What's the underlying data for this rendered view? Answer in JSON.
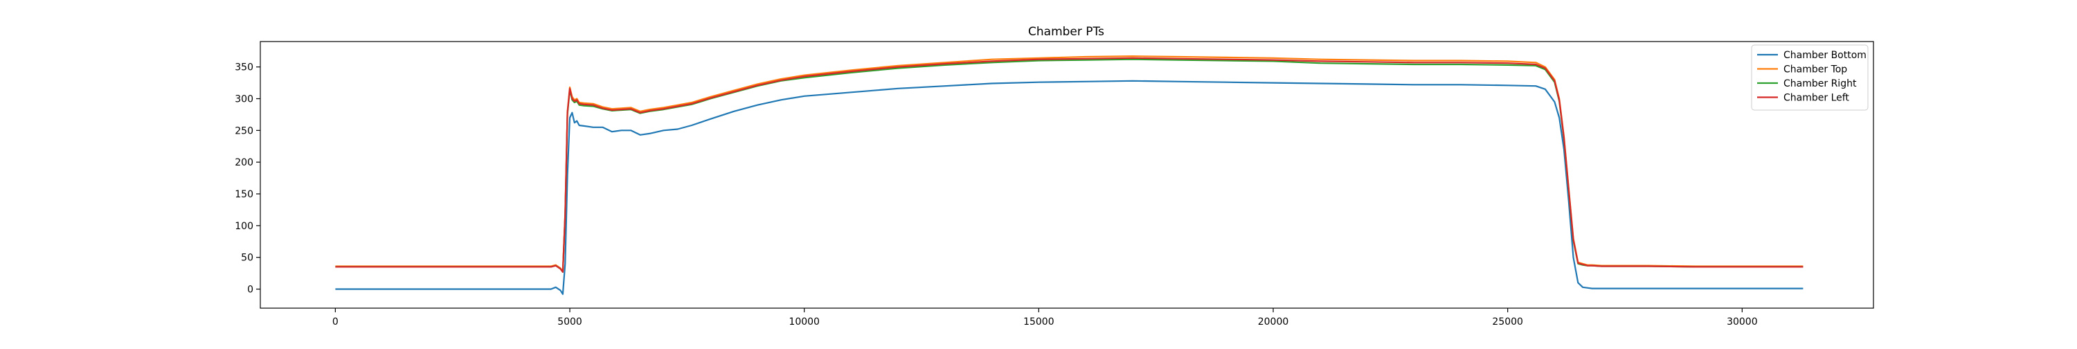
{
  "chart_data": {
    "type": "line",
    "title": "Chamber PTs",
    "xlabel": "",
    "ylabel": "",
    "xlim": [
      -1600,
      32800
    ],
    "ylim": [
      -30,
      390
    ],
    "xticks": [
      0,
      5000,
      10000,
      15000,
      20000,
      25000,
      30000
    ],
    "yticks": [
      0,
      50,
      100,
      150,
      200,
      250,
      300,
      350
    ],
    "grid": false,
    "legend_position": "top-right",
    "series": [
      {
        "name": "Chamber Bottom",
        "color": "#1f77b4",
        "x": [
          0,
          1000,
          2000,
          3000,
          4000,
          4600,
          4700,
          4800,
          4850,
          4900,
          4950,
          5000,
          5050,
          5100,
          5150,
          5200,
          5300,
          5500,
          5700,
          5900,
          6100,
          6300,
          6500,
          6700,
          7000,
          7300,
          7600,
          8000,
          8500,
          9000,
          9500,
          10000,
          11000,
          12000,
          13000,
          14000,
          15000,
          16000,
          17000,
          18000,
          19000,
          20000,
          21000,
          22000,
          23000,
          24000,
          25000,
          25600,
          25800,
          26000,
          26100,
          26200,
          26300,
          26400,
          26500,
          26600,
          26700,
          26800,
          27000,
          28000,
          29000,
          30000,
          31300
        ],
        "y": [
          0,
          0,
          0,
          0,
          0,
          0,
          3,
          -2,
          -8,
          40,
          180,
          270,
          278,
          262,
          265,
          258,
          257,
          255,
          255,
          248,
          250,
          250,
          243,
          245,
          250,
          252,
          258,
          268,
          280,
          290,
          298,
          304,
          310,
          316,
          320,
          324,
          326,
          327,
          328,
          327,
          326,
          325,
          324,
          323,
          322,
          322,
          321,
          320,
          315,
          295,
          270,
          220,
          140,
          50,
          10,
          3,
          2,
          1,
          1,
          1,
          1,
          1,
          1
        ]
      },
      {
        "name": "Chamber Top",
        "color": "#ff7f0e",
        "x": [
          0,
          1000,
          2000,
          3000,
          4000,
          4600,
          4700,
          4800,
          4850,
          4900,
          4950,
          5000,
          5050,
          5100,
          5150,
          5200,
          5300,
          5500,
          5700,
          5900,
          6100,
          6300,
          6500,
          6700,
          7000,
          7300,
          7600,
          8000,
          8500,
          9000,
          9500,
          10000,
          11000,
          12000,
          13000,
          14000,
          15000,
          16000,
          17000,
          18000,
          19000,
          20000,
          21000,
          22000,
          23000,
          24000,
          25000,
          25600,
          25800,
          26000,
          26100,
          26200,
          26300,
          26400,
          26500,
          26600,
          26700,
          26800,
          27000,
          28000,
          29000,
          30000,
          31300
        ],
        "y": [
          36,
          36,
          36,
          36,
          36,
          36,
          38,
          33,
          28,
          120,
          280,
          318,
          303,
          298,
          300,
          294,
          293,
          292,
          287,
          284,
          285,
          286,
          280,
          283,
          286,
          290,
          294,
          303,
          313,
          323,
          331,
          337,
          345,
          352,
          357,
          362,
          364,
          366,
          367,
          366,
          365,
          364,
          362,
          361,
          360,
          360,
          359,
          357,
          350,
          330,
          300,
          240,
          160,
          80,
          42,
          40,
          38,
          38,
          37,
          37,
          36,
          36,
          36
        ]
      },
      {
        "name": "Chamber Right",
        "color": "#2ca02c",
        "x": [
          0,
          1000,
          2000,
          3000,
          4000,
          4600,
          4700,
          4800,
          4850,
          4900,
          4950,
          5000,
          5050,
          5100,
          5150,
          5200,
          5300,
          5500,
          5700,
          5900,
          6100,
          6300,
          6500,
          6700,
          7000,
          7300,
          7600,
          8000,
          8500,
          9000,
          9500,
          10000,
          11000,
          12000,
          13000,
          14000,
          15000,
          16000,
          17000,
          18000,
          19000,
          20000,
          21000,
          22000,
          23000,
          24000,
          25000,
          25600,
          25800,
          26000,
          26100,
          26200,
          26300,
          26400,
          26500,
          26600,
          26700,
          26800,
          27000,
          28000,
          29000,
          30000,
          31300
        ],
        "y": [
          35,
          35,
          35,
          35,
          35,
          35,
          37,
          32,
          27,
          115,
          275,
          314,
          298,
          294,
          296,
          290,
          289,
          288,
          284,
          281,
          282,
          283,
          277,
          280,
          283,
          287,
          291,
          300,
          310,
          320,
          328,
          333,
          341,
          348,
          353,
          357,
          360,
          361,
          362,
          361,
          360,
          359,
          356,
          355,
          354,
          354,
          353,
          352,
          346,
          326,
          296,
          236,
          156,
          76,
          40,
          38,
          37,
          37,
          36,
          36,
          35,
          35,
          35
        ]
      },
      {
        "name": "Chamber Left",
        "color": "#d62728",
        "x": [
          0,
          1000,
          2000,
          3000,
          4000,
          4600,
          4700,
          4800,
          4850,
          4900,
          4950,
          5000,
          5050,
          5100,
          5150,
          5200,
          5300,
          5500,
          5700,
          5900,
          6100,
          6300,
          6500,
          6700,
          7000,
          7300,
          7600,
          8000,
          8500,
          9000,
          9500,
          10000,
          11000,
          12000,
          13000,
          14000,
          15000,
          16000,
          17000,
          18000,
          19000,
          20000,
          21000,
          22000,
          23000,
          24000,
          25000,
          25600,
          25800,
          26000,
          26100,
          26200,
          26300,
          26400,
          26500,
          26600,
          26700,
          26800,
          27000,
          28000,
          29000,
          30000,
          31300
        ],
        "y": [
          35,
          35,
          35,
          35,
          35,
          35,
          37,
          32,
          27,
          118,
          278,
          316,
          300,
          296,
          298,
          292,
          291,
          290,
          285,
          282,
          283,
          284,
          278,
          281,
          284,
          288,
          292,
          301,
          311,
          321,
          329,
          335,
          343,
          350,
          355,
          359,
          362,
          363,
          364,
          363,
          362,
          361,
          359,
          358,
          357,
          357,
          356,
          354,
          348,
          328,
          298,
          238,
          158,
          78,
          41,
          39,
          37,
          37,
          36,
          36,
          35,
          35,
          35
        ]
      }
    ]
  }
}
